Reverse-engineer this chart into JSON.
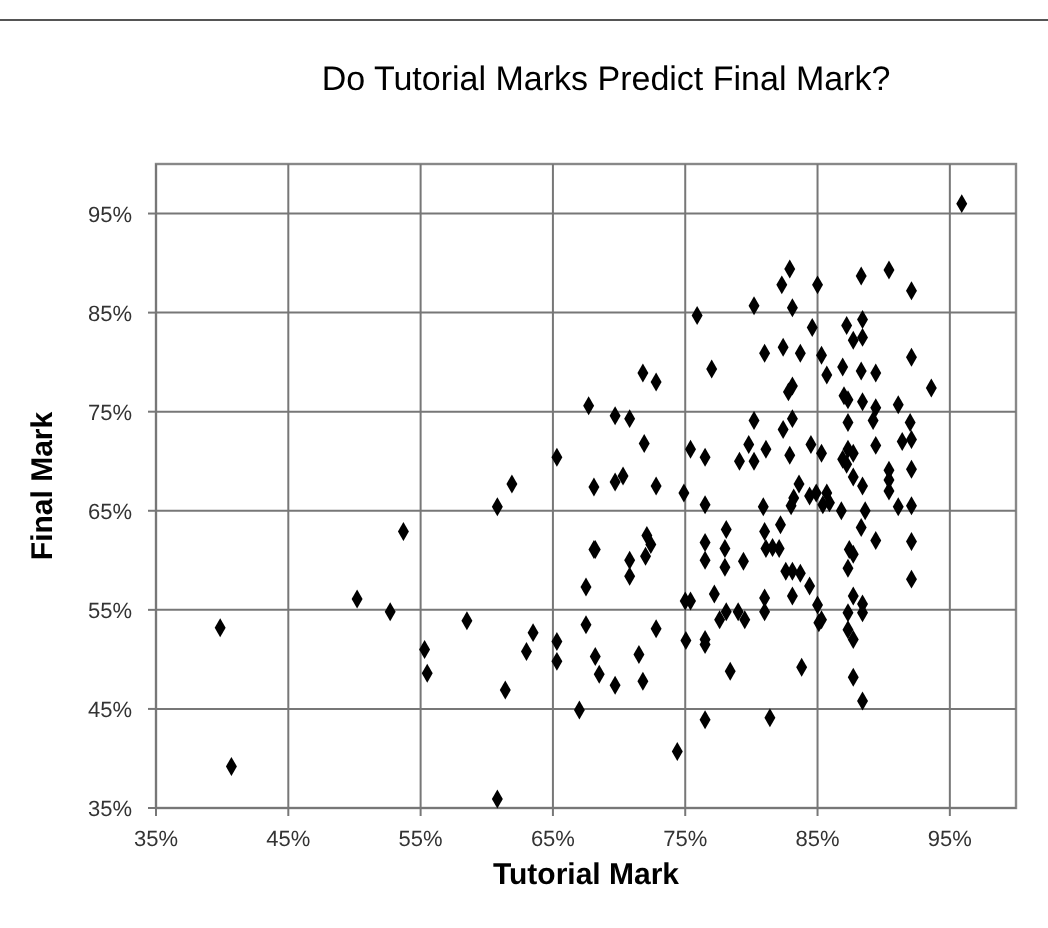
{
  "chart_data": {
    "type": "scatter",
    "title": "Do Tutorial Marks Predict Final Mark?",
    "xlabel": "Tutorial Mark",
    "ylabel": "Final Mark",
    "xlim": [
      35,
      100
    ],
    "ylim": [
      35,
      100
    ],
    "xticks": [
      {
        "value": 35,
        "label": "35%"
      },
      {
        "value": 45,
        "label": "45%"
      },
      {
        "value": 55,
        "label": "55%"
      },
      {
        "value": 65,
        "label": "65%"
      },
      {
        "value": 75,
        "label": "75%"
      },
      {
        "value": 85,
        "label": "85%"
      },
      {
        "value": 95,
        "label": "95%"
      }
    ],
    "yticks": [
      {
        "value": 35,
        "label": "35%"
      },
      {
        "value": 45,
        "label": "45%"
      },
      {
        "value": 55,
        "label": "55%"
      },
      {
        "value": 65,
        "label": "65%"
      },
      {
        "value": 75,
        "label": "75%"
      },
      {
        "value": 85,
        "label": "85%"
      },
      {
        "value": 95,
        "label": "95%"
      }
    ],
    "grid": true,
    "marker": "diamond",
    "series": [
      {
        "color": "#000000",
        "x": [
          95.9,
          82.9,
          90.4,
          88.3,
          82.3,
          85.0,
          92.1,
          80.2,
          83.1,
          75.9,
          84.6,
          87.2,
          88.4,
          87.7,
          88.4,
          81.0,
          82.4,
          83.7,
          85.3,
          92.1,
          71.8,
          72.8,
          77.0,
          85.7,
          86.9,
          88.3,
          89.4,
          83.1,
          82.8,
          93.6,
          87.0,
          87.3,
          88.4,
          89.4,
          91.1,
          69.7,
          70.8,
          80.2,
          83.1,
          82.4,
          87.3,
          89.2,
          92.0,
          71.9,
          75.4,
          76.5,
          79.8,
          81.1,
          79.1,
          80.2,
          82.9,
          84.5,
          85.3,
          87.3,
          87.7,
          89.4,
          91.4,
          92.1,
          86.9,
          87.2,
          92.1,
          90.4,
          90.4,
          90.4,
          70.3,
          69.7,
          72.8,
          74.9,
          76.5,
          87.7,
          88.4,
          83.6,
          83.2,
          83.0,
          84.4,
          84.9,
          85.7,
          85.4,
          85.9,
          86.8,
          88.6,
          91.1,
          92.1,
          80.9,
          82.2,
          78.1,
          81.0,
          76.5,
          78.0,
          76.5,
          79.4,
          81.1,
          81.6,
          82.1,
          82.6,
          83.1,
          83.7,
          84.4,
          83.1,
          81.0,
          78.0,
          88.3,
          89.4,
          92.1,
          87.4,
          87.7,
          87.3,
          92.1,
          68.2,
          70.8,
          72.1,
          72.4,
          72.0,
          70.8,
          77.2,
          75.0,
          75.4,
          87.7,
          88.4,
          85.0,
          68.2,
          68.5,
          69.7,
          71.5,
          71.8,
          72.8,
          76.5,
          76.5,
          75.05,
          77.6,
          78.1,
          79.0,
          79.5,
          81.0,
          78.4,
          76.5,
          81.4,
          74.4,
          83.8,
          85.1,
          85.3,
          87.3,
          88.4,
          87.3,
          87.7,
          87.7,
          88.4,
          67.7,
          65.3,
          61.9,
          68.1,
          60.8,
          53.7,
          68.1,
          67.5,
          50.2,
          52.7,
          39.85,
          58.5,
          63.5,
          67.5,
          55.3,
          55.5,
          63.0,
          65.3,
          65.3,
          67.0,
          61.4,
          60.8,
          40.7
        ],
        "values": [
          96.0,
          89.4,
          89.3,
          88.7,
          87.8,
          87.8,
          87.2,
          85.7,
          85.5,
          84.7,
          83.5,
          83.7,
          84.3,
          82.2,
          82.5,
          80.9,
          81.5,
          80.9,
          80.7,
          80.5,
          78.9,
          78.0,
          79.3,
          78.7,
          79.5,
          79.1,
          78.9,
          77.6,
          77.0,
          77.4,
          76.6,
          76.2,
          76.0,
          75.4,
          75.7,
          74.6,
          74.3,
          74.1,
          74.3,
          73.2,
          73.9,
          74.1,
          73.9,
          71.8,
          71.2,
          70.4,
          71.7,
          71.2,
          70.0,
          70.0,
          70.6,
          71.7,
          70.8,
          71.2,
          70.8,
          71.6,
          72.0,
          72.2,
          70.2,
          69.7,
          69.2,
          69.1,
          68.1,
          67.0,
          68.5,
          67.9,
          67.5,
          66.8,
          65.6,
          68.4,
          67.5,
          67.7,
          66.3,
          65.5,
          66.5,
          66.8,
          66.8,
          65.6,
          65.8,
          65.0,
          65.0,
          65.4,
          65.5,
          65.4,
          63.6,
          63.1,
          62.9,
          61.8,
          61.2,
          60.0,
          59.9,
          61.2,
          61.3,
          61.2,
          58.9,
          58.9,
          58.7,
          57.4,
          56.4,
          56.2,
          59.3,
          63.3,
          62.0,
          61.9,
          61.1,
          60.6,
          59.2,
          58.1,
          61.1,
          60.0,
          62.5,
          61.6,
          60.4,
          58.4,
          56.6,
          55.9,
          55.9,
          56.4,
          55.6,
          55.5,
          50.3,
          48.5,
          47.4,
          50.5,
          47.8,
          53.1,
          52.0,
          51.5,
          51.9,
          54.0,
          54.8,
          54.8,
          54.0,
          54.8,
          48.8,
          43.9,
          44.1,
          40.7,
          49.2,
          53.7,
          54.0,
          54.7,
          54.7,
          53.0,
          52.0,
          48.2,
          45.8,
          75.6,
          70.4,
          67.7,
          67.4,
          65.4,
          62.9,
          61.1,
          57.3,
          56.1,
          54.8,
          53.2,
          53.9,
          52.7,
          53.5,
          51.0,
          48.6,
          50.8,
          51.8,
          49.8,
          44.9,
          46.9,
          35.9,
          39.2
        ]
      }
    ]
  }
}
